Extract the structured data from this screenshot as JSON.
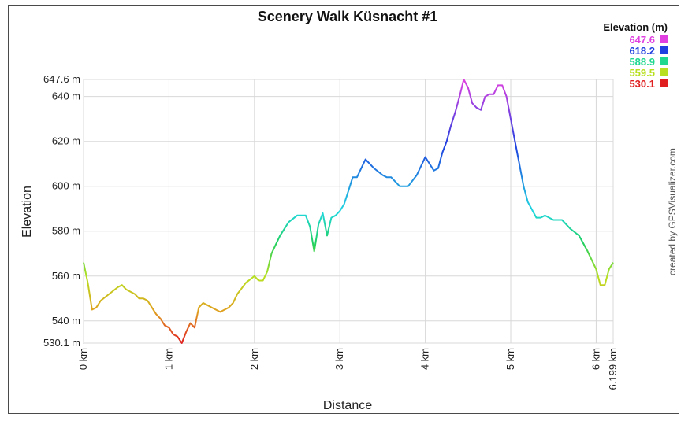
{
  "chart_data": {
    "type": "line",
    "title": "Scenery Walk Küsnacht #1",
    "xlabel": "Distance",
    "ylabel": "Elevation",
    "credit": "created by GPSVisualizer.com",
    "xlim": [
      0,
      6.199
    ],
    "ylim": [
      530.1,
      647.6
    ],
    "grid": true,
    "y_ticks": [
      {
        "value": 647.6,
        "label": "647.6 m"
      },
      {
        "value": 640,
        "label": "640 m"
      },
      {
        "value": 620,
        "label": "620 m"
      },
      {
        "value": 600,
        "label": "600 m"
      },
      {
        "value": 580,
        "label": "580 m"
      },
      {
        "value": 560,
        "label": "560 m"
      },
      {
        "value": 540,
        "label": "540 m"
      },
      {
        "value": 530.1,
        "label": "530.1 m"
      }
    ],
    "x_ticks": [
      {
        "value": 0,
        "label": "0 km"
      },
      {
        "value": 1,
        "label": "1 km"
      },
      {
        "value": 2,
        "label": "2 km"
      },
      {
        "value": 3,
        "label": "3 km"
      },
      {
        "value": 4,
        "label": "4 km"
      },
      {
        "value": 5,
        "label": "5 km"
      },
      {
        "value": 6,
        "label": "6 km"
      },
      {
        "value": 6.199,
        "label": "6.199 km"
      }
    ],
    "legend": {
      "title": "Elevation (m)",
      "placement": "top-right",
      "entries": [
        {
          "label": "647.6",
          "color": "#e040e0"
        },
        {
          "label": "618.2",
          "color": "#2040e0"
        },
        {
          "label": "588.9",
          "color": "#20d890"
        },
        {
          "label": "559.5",
          "color": "#b8e020"
        },
        {
          "label": "530.1",
          "color": "#e02020"
        }
      ]
    },
    "series": [
      {
        "x": [
          0,
          0.05,
          0.1,
          0.15,
          0.2,
          0.3,
          0.4,
          0.45,
          0.5,
          0.6,
          0.65,
          0.7,
          0.75,
          0.8,
          0.85,
          0.9,
          0.95,
          1.0,
          1.05,
          1.1,
          1.15,
          1.2,
          1.25,
          1.3,
          1.35,
          1.4,
          1.45,
          1.5,
          1.6,
          1.7,
          1.75,
          1.8,
          1.9,
          2.0,
          2.05,
          2.1,
          2.15,
          2.2,
          2.3,
          2.4,
          2.5,
          2.6,
          2.65,
          2.7,
          2.75,
          2.8,
          2.85,
          2.9,
          2.95,
          3.0,
          3.05,
          3.1,
          3.15,
          3.2,
          3.3,
          3.4,
          3.5,
          3.55,
          3.6,
          3.7,
          3.8,
          3.9,
          4.0,
          4.1,
          4.15,
          4.2,
          4.25,
          4.3,
          4.35,
          4.4,
          4.45,
          4.5,
          4.55,
          4.6,
          4.65,
          4.7,
          4.75,
          4.8,
          4.85,
          4.9,
          4.95,
          5.0,
          5.05,
          5.1,
          5.15,
          5.2,
          5.3,
          5.35,
          5.4,
          5.5,
          5.6,
          5.7,
          5.8,
          5.9,
          6.0,
          6.05,
          6.1,
          6.15,
          6.199
        ],
        "y": [
          566,
          557,
          545,
          546,
          549,
          552,
          555,
          556,
          554,
          552,
          550,
          550,
          549,
          546,
          543,
          541,
          538,
          537,
          534,
          533,
          530.1,
          535,
          539,
          537,
          546,
          548,
          547,
          546,
          544,
          546,
          548,
          552,
          557,
          560,
          558,
          558,
          562,
          570,
          578,
          584,
          587,
          587,
          582,
          571,
          583,
          588,
          578,
          586,
          587,
          589,
          592,
          598,
          604,
          604,
          612,
          608,
          605,
          604,
          604,
          600,
          600,
          605,
          613,
          607,
          608,
          615,
          620,
          627,
          633,
          640,
          647.6,
          644,
          637,
          635,
          634,
          640,
          641,
          641,
          645,
          645,
          640,
          630,
          620,
          610,
          600,
          593,
          586,
          586,
          587,
          585,
          585,
          581,
          578,
          571,
          563,
          556,
          556,
          563,
          566
        ]
      }
    ]
  }
}
